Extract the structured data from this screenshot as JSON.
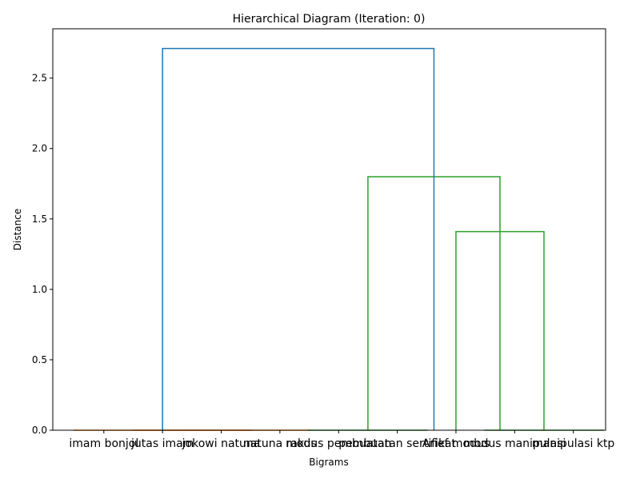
{
  "chart_data": {
    "type": "dendrogram",
    "title": "Hierarchical Diagram (Iteration: 0)",
    "xlabel": "Bigrams",
    "ylabel": "Distance",
    "ylim": [
      0,
      2.85
    ],
    "yticks": [
      0.0,
      0.5,
      1.0,
      1.5,
      2.0,
      2.5
    ],
    "ytick_labels": [
      "0.0",
      "0.5",
      "1.0",
      "1.5",
      "2.0",
      "2.5"
    ],
    "grid": false,
    "leaves": [
      "imam bonjol",
      "jutas imam",
      "jokowi natuna",
      "natuna rakus",
      "modus pembuatan",
      "pembuatan sertifikat",
      "Arief modus",
      "modus manipulasi",
      "manipulasi ktp"
    ],
    "links": [
      {
        "from": [
          0,
          1
        ],
        "height": 0.0,
        "color": "#ff7f0e"
      },
      {
        "from": [
          1,
          2
        ],
        "height": 0.0,
        "color": "#ff7f0e"
      },
      {
        "from": [
          2,
          3
        ],
        "height": 0.0,
        "color": "#ff7f0e"
      },
      {
        "from": [
          4,
          5
        ],
        "height": 0.0,
        "color": "#2ca02c"
      },
      {
        "from": [
          7,
          8
        ],
        "height": 0.0,
        "color": "#2ca02c"
      },
      {
        "from": [
          6,
          7.5
        ],
        "height": 1.41,
        "color": "#2ca02c"
      },
      {
        "from": [
          4.5,
          6.75
        ],
        "height": 1.8,
        "color": "#2ca02c"
      },
      {
        "from": [
          1,
          5.625
        ],
        "height": 2.71,
        "color": "#1f77b4"
      }
    ]
  }
}
